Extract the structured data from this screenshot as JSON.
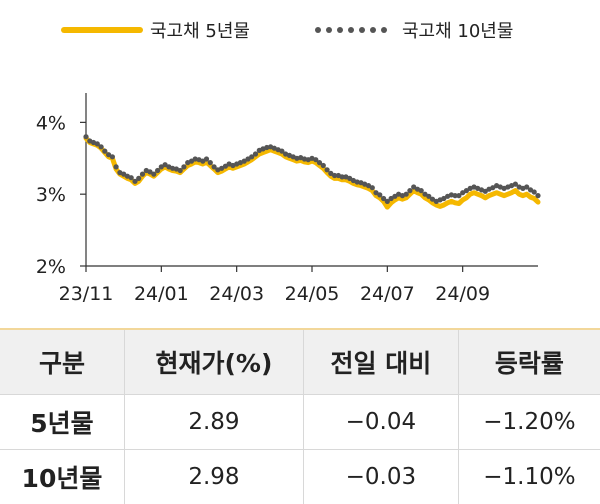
{
  "chart_data": {
    "type": "line",
    "title": "",
    "xlabel": "",
    "ylabel": "",
    "ylim": [
      2,
      4.2
    ],
    "y_ticks": [
      "2%",
      "3%",
      "4%"
    ],
    "y_tick_values": [
      2,
      3,
      4
    ],
    "x_ticks": [
      "23/11",
      "24/01",
      "24/03",
      "24/05",
      "24/07",
      "24/09"
    ],
    "x_range": [
      0,
      12
    ],
    "legend_position": "top",
    "grid": false,
    "series": [
      {
        "name": "국고채 5년물",
        "style": "solid",
        "color": "#f5b800",
        "x": [
          0,
          0.1,
          0.2,
          0.3,
          0.4,
          0.5,
          0.6,
          0.7,
          0.8,
          0.9,
          1.0,
          1.1,
          1.2,
          1.3,
          1.4,
          1.5,
          1.6,
          1.7,
          1.8,
          1.9,
          2.0,
          2.1,
          2.2,
          2.3,
          2.4,
          2.5,
          2.6,
          2.7,
          2.8,
          2.9,
          3.0,
          3.1,
          3.2,
          3.3,
          3.4,
          3.5,
          3.6,
          3.7,
          3.8,
          3.9,
          4.0,
          4.1,
          4.2,
          4.3,
          4.4,
          4.5,
          4.6,
          4.7,
          4.8,
          4.9,
          5.0,
          5.1,
          5.2,
          5.3,
          5.4,
          5.5,
          5.6,
          5.7,
          5.8,
          5.9,
          6.0,
          6.1,
          6.2,
          6.3,
          6.4,
          6.5,
          6.6,
          6.7,
          6.8,
          6.9,
          7.0,
          7.1,
          7.2,
          7.3,
          7.4,
          7.5,
          7.6,
          7.7,
          7.8,
          7.9,
          8.0,
          8.1,
          8.2,
          8.3,
          8.4,
          8.5,
          8.6,
          8.7,
          8.8,
          8.9,
          9.0,
          9.1,
          9.2,
          9.3,
          9.4,
          9.5,
          9.6,
          9.7,
          9.8,
          9.9,
          10.0,
          10.1,
          10.2,
          10.3,
          10.4,
          10.5,
          10.6,
          10.7,
          10.8,
          10.9,
          11.0,
          11.1,
          11.2,
          11.3,
          11.4,
          11.5,
          11.6,
          11.7,
          11.8,
          11.9,
          12.0
        ],
        "values": [
          3.78,
          3.72,
          3.7,
          3.68,
          3.64,
          3.58,
          3.52,
          3.5,
          3.35,
          3.28,
          3.25,
          3.22,
          3.2,
          3.15,
          3.18,
          3.25,
          3.3,
          3.28,
          3.25,
          3.3,
          3.35,
          3.38,
          3.35,
          3.33,
          3.32,
          3.3,
          3.35,
          3.4,
          3.42,
          3.45,
          3.44,
          3.42,
          3.45,
          3.4,
          3.35,
          3.3,
          3.32,
          3.35,
          3.38,
          3.36,
          3.38,
          3.4,
          3.42,
          3.45,
          3.48,
          3.52,
          3.56,
          3.58,
          3.6,
          3.62,
          3.6,
          3.58,
          3.56,
          3.52,
          3.5,
          3.48,
          3.46,
          3.47,
          3.45,
          3.44,
          3.46,
          3.44,
          3.4,
          3.36,
          3.3,
          3.25,
          3.22,
          3.22,
          3.2,
          3.2,
          3.18,
          3.15,
          3.13,
          3.12,
          3.1,
          3.08,
          3.05,
          2.98,
          2.95,
          2.9,
          2.82,
          2.88,
          2.92,
          2.95,
          2.93,
          2.95,
          3.0,
          3.05,
          3.02,
          3.0,
          2.95,
          2.92,
          2.88,
          2.85,
          2.83,
          2.85,
          2.88,
          2.9,
          2.88,
          2.87,
          2.92,
          2.95,
          3.0,
          3.02,
          3.0,
          2.98,
          2.95,
          2.98,
          3.0,
          3.02,
          3.0,
          2.98,
          3.0,
          3.02,
          3.05,
          3.0,
          2.98,
          3.0,
          2.96,
          2.94,
          2.89
        ]
      },
      {
        "name": "국고채 10년물",
        "style": "dotted",
        "color": "#555555",
        "x": [
          0,
          0.1,
          0.2,
          0.3,
          0.4,
          0.5,
          0.6,
          0.7,
          0.8,
          0.9,
          1.0,
          1.1,
          1.2,
          1.3,
          1.4,
          1.5,
          1.6,
          1.7,
          1.8,
          1.9,
          2.0,
          2.1,
          2.2,
          2.3,
          2.4,
          2.5,
          2.6,
          2.7,
          2.8,
          2.9,
          3.0,
          3.1,
          3.2,
          3.3,
          3.4,
          3.5,
          3.6,
          3.7,
          3.8,
          3.9,
          4.0,
          4.1,
          4.2,
          4.3,
          4.4,
          4.5,
          4.6,
          4.7,
          4.8,
          4.9,
          5.0,
          5.1,
          5.2,
          5.3,
          5.4,
          5.5,
          5.6,
          5.7,
          5.8,
          5.9,
          6.0,
          6.1,
          6.2,
          6.3,
          6.4,
          6.5,
          6.6,
          6.7,
          6.8,
          6.9,
          7.0,
          7.1,
          7.2,
          7.3,
          7.4,
          7.5,
          7.6,
          7.7,
          7.8,
          7.9,
          8.0,
          8.1,
          8.2,
          8.3,
          8.4,
          8.5,
          8.6,
          8.7,
          8.8,
          8.9,
          9.0,
          9.1,
          9.2,
          9.3,
          9.4,
          9.5,
          9.6,
          9.7,
          9.8,
          9.9,
          10.0,
          10.1,
          10.2,
          10.3,
          10.4,
          10.5,
          10.6,
          10.7,
          10.8,
          10.9,
          11.0,
          11.1,
          11.2,
          11.3,
          11.4,
          11.5,
          11.6,
          11.7,
          11.8,
          11.9,
          12.0
        ],
        "values": [
          3.8,
          3.74,
          3.72,
          3.7,
          3.66,
          3.6,
          3.55,
          3.52,
          3.38,
          3.3,
          3.28,
          3.25,
          3.23,
          3.18,
          3.22,
          3.28,
          3.33,
          3.31,
          3.28,
          3.33,
          3.38,
          3.41,
          3.38,
          3.36,
          3.35,
          3.33,
          3.38,
          3.44,
          3.46,
          3.49,
          3.48,
          3.46,
          3.49,
          3.44,
          3.38,
          3.34,
          3.36,
          3.39,
          3.42,
          3.4,
          3.42,
          3.44,
          3.46,
          3.49,
          3.52,
          3.56,
          3.61,
          3.63,
          3.65,
          3.66,
          3.64,
          3.62,
          3.6,
          3.56,
          3.54,
          3.52,
          3.5,
          3.51,
          3.49,
          3.48,
          3.5,
          3.48,
          3.44,
          3.4,
          3.34,
          3.29,
          3.26,
          3.26,
          3.24,
          3.24,
          3.22,
          3.19,
          3.17,
          3.16,
          3.14,
          3.12,
          3.09,
          3.02,
          2.99,
          2.94,
          2.9,
          2.94,
          2.97,
          3.0,
          2.98,
          3.0,
          3.05,
          3.1,
          3.07,
          3.05,
          3.0,
          2.97,
          2.93,
          2.9,
          2.92,
          2.94,
          2.97,
          2.99,
          2.98,
          2.98,
          3.02,
          3.05,
          3.08,
          3.1,
          3.08,
          3.06,
          3.04,
          3.07,
          3.09,
          3.12,
          3.1,
          3.08,
          3.1,
          3.12,
          3.14,
          3.1,
          3.08,
          3.1,
          3.06,
          3.03,
          2.98
        ]
      }
    ]
  },
  "table": {
    "headers": [
      "구분",
      "현재가(%)",
      "전일 대비",
      "등락률"
    ],
    "rows": [
      {
        "label": "5년물",
        "price": "2.89",
        "change": "−0.04",
        "rate": "−1.20%"
      },
      {
        "label": "10년물",
        "price": "2.98",
        "change": "−0.03",
        "rate": "−1.10%"
      }
    ]
  }
}
